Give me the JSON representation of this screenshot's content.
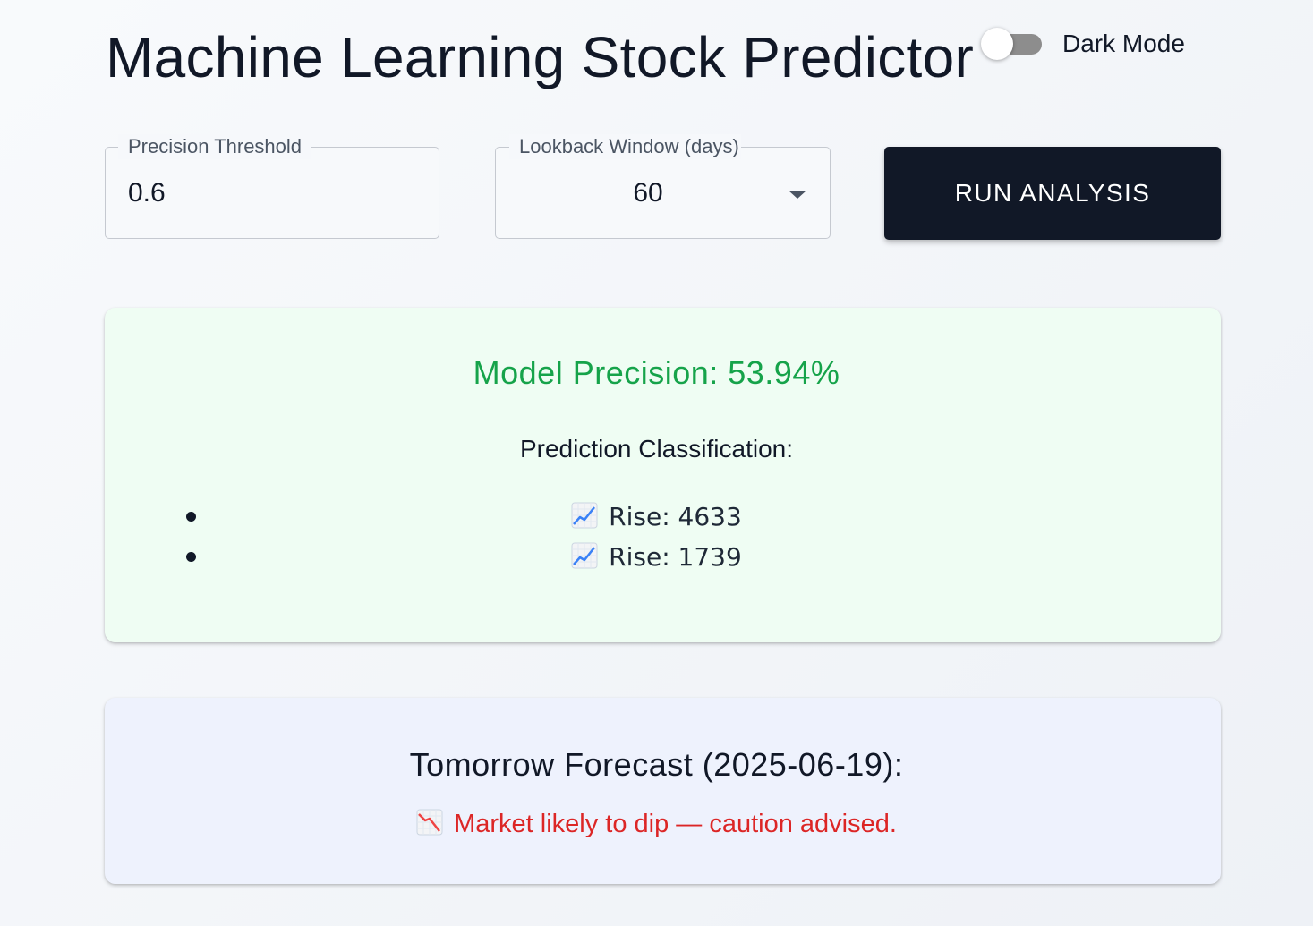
{
  "header": {
    "title": "Machine Learning Stock Predictor",
    "dark_mode_label": "Dark Mode",
    "dark_mode_on": false
  },
  "controls": {
    "precision_threshold": {
      "label": "Precision Threshold",
      "value": "0.6"
    },
    "lookback_window": {
      "label": "Lookback Window (days)",
      "selected": "60"
    },
    "run_button_label": "RUN ANALYSIS"
  },
  "results": {
    "precision_text": "Model Precision: 53.94%",
    "classification_heading": "Prediction Classification:",
    "items": [
      {
        "icon": "chart-increasing-icon",
        "text": "Rise: 4633"
      },
      {
        "icon": "chart-increasing-icon",
        "text": "Rise: 1739"
      }
    ]
  },
  "forecast": {
    "title": "Tomorrow Forecast (2025-06-19):",
    "icon": "chart-decreasing-icon",
    "message": "Market likely to dip — caution advised."
  },
  "colors": {
    "primary": "#111827",
    "precision_green": "#16a34a",
    "dip_red": "#dc2626",
    "precision_card_bg": "#effdf3",
    "forecast_card_bg": "#eef2fd"
  }
}
